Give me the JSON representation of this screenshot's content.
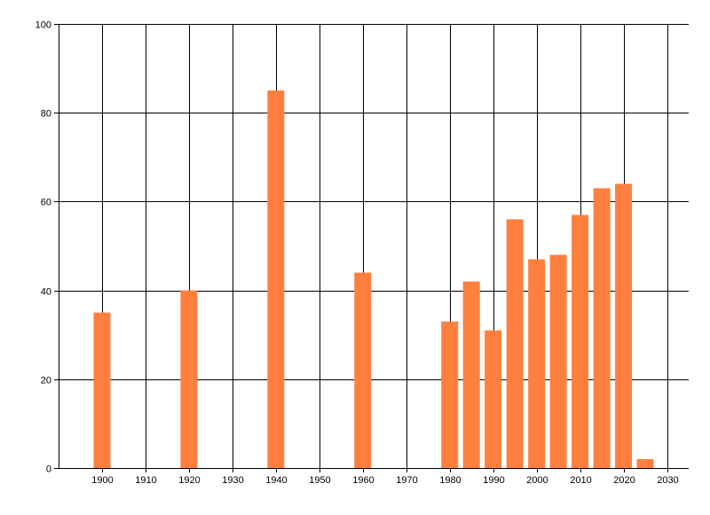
{
  "chart_data": {
    "type": "bar",
    "title": "",
    "xlabel": "",
    "ylabel": "",
    "x": [
      1900,
      1920,
      1940,
      1960,
      1980,
      1985,
      1990,
      1995,
      2000,
      2005,
      2010,
      2015,
      2020,
      2025
    ],
    "values": [
      35,
      40,
      85,
      44,
      33,
      42,
      31,
      56,
      47,
      48,
      57,
      63,
      64,
      2
    ],
    "xlim": [
      1890,
      2035
    ],
    "ylim": [
      0,
      100
    ],
    "x_ticks": [
      1900,
      1910,
      1920,
      1930,
      1940,
      1950,
      1960,
      1970,
      1980,
      1990,
      2000,
      2010,
      2020,
      2030
    ],
    "y_ticks": [
      0,
      20,
      40,
      60,
      80,
      100
    ],
    "grid": true,
    "bar_color": "#FF7F3F",
    "grid_color": "#000000"
  }
}
